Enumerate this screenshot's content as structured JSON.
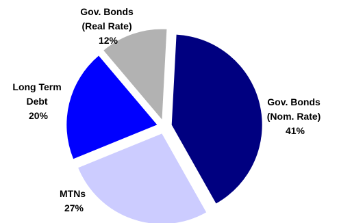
{
  "chart_data": {
    "type": "pie",
    "title": "",
    "slices": [
      {
        "label": "Gov. Bonds (Nom. Rate)",
        "label_lines": [
          "Gov. Bonds",
          "(Nom. Rate)"
        ],
        "value": 41,
        "value_label": "41%",
        "color": "#000080"
      },
      {
        "label": "MTNs",
        "label_lines": [
          "MTNs"
        ],
        "value": 27,
        "value_label": "27%",
        "color": "#ccccff"
      },
      {
        "label": "Long Term Debt",
        "label_lines": [
          "Long Term",
          "Debt"
        ],
        "value": 20,
        "value_label": "20%",
        "color": "#0000ff"
      },
      {
        "label": "Gov. Bonds (Real Rate)",
        "label_lines": [
          "Gov. Bonds",
          "(Real Rate)"
        ],
        "value": 12,
        "value_label": "12%",
        "color": "#b2b2b2"
      }
    ],
    "start_angle_deg": 3,
    "direction": "clockwise",
    "exploded": true,
    "legend": "none"
  }
}
